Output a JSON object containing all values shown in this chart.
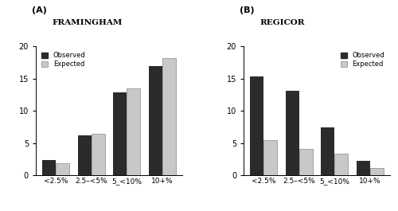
{
  "panel_A": {
    "title": "FRAMINGHAM",
    "categories": [
      "<2.5%",
      "2.5–<5%",
      "5_<10%",
      "10+%"
    ],
    "observed": [
      2.3,
      6.2,
      12.8,
      17.0
    ],
    "expected": [
      1.9,
      6.4,
      13.5,
      18.2
    ],
    "ylim": [
      0,
      20
    ],
    "yticks": [
      0,
      5,
      10,
      15,
      20
    ],
    "legend_loc": "upper left"
  },
  "panel_B": {
    "title": "REGICOR",
    "categories": [
      "<2.5%",
      "2.5–<5%",
      "5_<10%",
      "10+%"
    ],
    "observed": [
      15.3,
      13.1,
      7.4,
      2.2
    ],
    "expected": [
      5.4,
      4.1,
      3.3,
      1.1
    ],
    "ylim": [
      0,
      20
    ],
    "yticks": [
      0,
      5,
      10,
      15,
      20
    ],
    "legend_loc": "upper right"
  },
  "observed_color": "#2b2b2b",
  "expected_color": "#c8c8c8",
  "bar_width": 0.38,
  "legend_labels": [
    "Observed",
    "Expected"
  ],
  "label_A": "(A)",
  "label_B": "(B)"
}
